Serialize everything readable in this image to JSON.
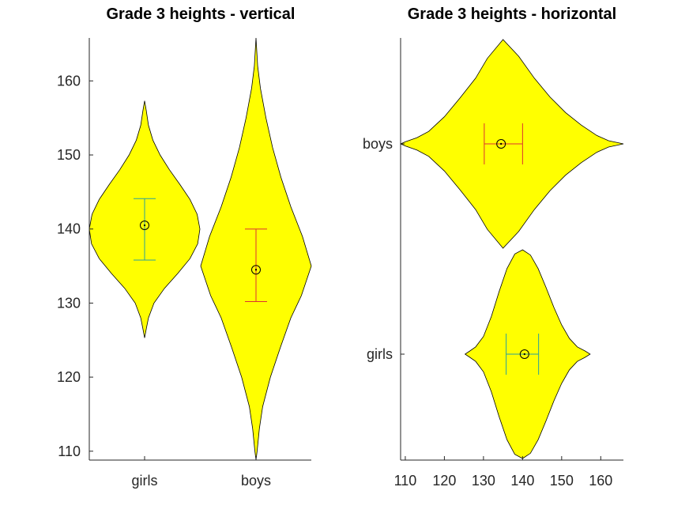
{
  "chart_data": [
    {
      "type": "violin",
      "title": "Grade 3 heights - vertical",
      "orientation": "vertical",
      "xlabel": "",
      "ylabel": "",
      "ylim": [
        108.8,
        165.8
      ],
      "yticks": [
        110,
        120,
        130,
        140,
        150,
        160
      ],
      "ytick_labels": [
        "110",
        "120",
        "130",
        "140",
        "150",
        "160"
      ],
      "categories": [
        "girls",
        "boys"
      ],
      "fill_color": "#ffff00",
      "series": [
        {
          "category": "girls",
          "mean": 140.5,
          "err_low": 135.8,
          "err_high": 144.1,
          "min": 125.3,
          "max": 157.3,
          "errorbar_color": "#2aa198",
          "profile": [
            [
              125.3,
              0.0
            ],
            [
              126.5,
              0.03
            ],
            [
              128,
              0.07
            ],
            [
              130,
              0.17
            ],
            [
              132,
              0.36
            ],
            [
              134,
              0.6
            ],
            [
              136,
              0.82
            ],
            [
              138,
              0.96
            ],
            [
              140,
              1.0
            ],
            [
              142,
              0.95
            ],
            [
              144,
              0.82
            ],
            [
              146,
              0.64
            ],
            [
              148,
              0.45
            ],
            [
              150,
              0.28
            ],
            [
              152,
              0.15
            ],
            [
              154,
              0.07
            ],
            [
              156,
              0.03
            ],
            [
              157.3,
              0.0
            ]
          ]
        },
        {
          "category": "boys",
          "mean": 134.5,
          "err_low": 130.2,
          "err_high": 140.0,
          "min": 108.8,
          "max": 165.8,
          "errorbar_color": "#dc322f",
          "profile": [
            [
              108.8,
              0.0
            ],
            [
              110,
              0.02
            ],
            [
              113,
              0.06
            ],
            [
              116,
              0.12
            ],
            [
              120,
              0.26
            ],
            [
              124,
              0.44
            ],
            [
              128,
              0.63
            ],
            [
              131,
              0.82
            ],
            [
              135,
              1.0
            ],
            [
              139,
              0.84
            ],
            [
              143,
              0.63
            ],
            [
              147,
              0.45
            ],
            [
              151,
              0.3
            ],
            [
              155,
              0.18
            ],
            [
              159,
              0.08
            ],
            [
              162,
              0.03
            ],
            [
              165.8,
              0.0
            ]
          ]
        }
      ]
    },
    {
      "type": "violin",
      "title": "Grade 3 heights - horizontal",
      "orientation": "horizontal",
      "xlabel": "",
      "ylabel": "",
      "xlim": [
        108.8,
        165.8
      ],
      "xticks": [
        110,
        120,
        130,
        140,
        150,
        160
      ],
      "xtick_labels": [
        "110",
        "120",
        "130",
        "140",
        "150",
        "160"
      ],
      "categories": [
        "girls",
        "boys"
      ],
      "fill_color": "#ffff00",
      "series": [
        {
          "category": "girls",
          "mean": 140.5,
          "err_low": 135.8,
          "err_high": 144.1,
          "min": 125.3,
          "max": 157.3,
          "errorbar_color": "#2aa198",
          "profile": [
            [
              125.3,
              0.0
            ],
            [
              126.5,
              0.03
            ],
            [
              128,
              0.07
            ],
            [
              130,
              0.17
            ],
            [
              132,
              0.36
            ],
            [
              134,
              0.6
            ],
            [
              136,
              0.82
            ],
            [
              138,
              0.96
            ],
            [
              140,
              1.0
            ],
            [
              142,
              0.95
            ],
            [
              144,
              0.82
            ],
            [
              146,
              0.64
            ],
            [
              148,
              0.45
            ],
            [
              150,
              0.28
            ],
            [
              152,
              0.15
            ],
            [
              154,
              0.07
            ],
            [
              156,
              0.03
            ],
            [
              157.3,
              0.0
            ]
          ]
        },
        {
          "category": "boys",
          "mean": 134.5,
          "err_low": 130.2,
          "err_high": 140.0,
          "min": 108.8,
          "max": 165.8,
          "errorbar_color": "#dc322f",
          "profile": [
            [
              108.8,
              0.0
            ],
            [
              110,
              0.02
            ],
            [
              113,
              0.06
            ],
            [
              116,
              0.12
            ],
            [
              120,
              0.26
            ],
            [
              124,
              0.44
            ],
            [
              128,
              0.63
            ],
            [
              131,
              0.82
            ],
            [
              135,
              1.0
            ],
            [
              139,
              0.84
            ],
            [
              143,
              0.63
            ],
            [
              147,
              0.45
            ],
            [
              151,
              0.3
            ],
            [
              155,
              0.18
            ],
            [
              159,
              0.08
            ],
            [
              162,
              0.03
            ],
            [
              165.8,
              0.0
            ]
          ]
        }
      ]
    }
  ]
}
